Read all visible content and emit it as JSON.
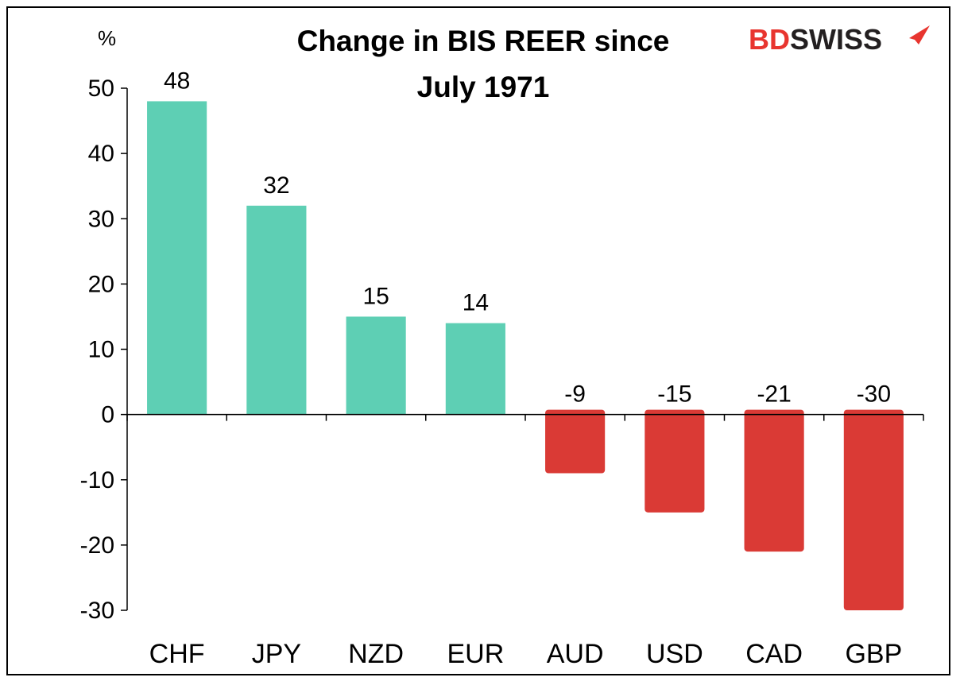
{
  "colors": {
    "positive": "#5ecfb4",
    "negative": "#da3a35",
    "brand_red": "#e8352f",
    "brand_dark": "#231f20"
  },
  "logo": {
    "part1": "BD",
    "part2": "SWISS"
  },
  "chart_data": {
    "type": "bar",
    "title_line1": "Change in BIS REER since",
    "title_line2": "July 1971",
    "ylabel": "%",
    "xlabel": "",
    "categories": [
      "CHF",
      "JPY",
      "NZD",
      "EUR",
      "AUD",
      "USD",
      "CAD",
      "GBP"
    ],
    "values": [
      48,
      32,
      15,
      14,
      -9,
      -15,
      -21,
      -30
    ],
    "ylim": [
      -30,
      50
    ],
    "yticks": [
      50,
      40,
      30,
      20,
      10,
      0,
      -10,
      -20,
      -30
    ],
    "grid": false,
    "legend": "none"
  }
}
